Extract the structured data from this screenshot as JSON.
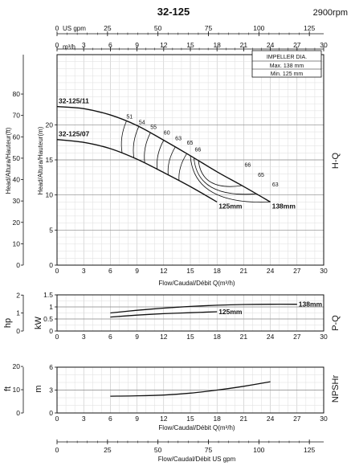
{
  "header": {
    "model": "32-125",
    "speed": "2900rpm"
  },
  "axes": {
    "usgpm_label": "US gpm",
    "q_label": "m³/h",
    "flow_label": "Flow/Caudal/Débit Q(m³/h)",
    "flow_label_gpm": "Flow/Caudal/Débit  US gpm",
    "head_ft_label": "Head/Altura/Hauteur(ft)",
    "head_m_label": "Head/Altura/Hauteur(m)",
    "hp_label": "hp",
    "kw_label": "kW",
    "ft_label": "ft",
    "m_label": "m",
    "hq_label": "H-Q",
    "pq_label": "P-Q",
    "npsh_label": "NPSHr"
  },
  "legend": {
    "title": "IMPELLER DIA.",
    "max": "Max.  138 mm",
    "min": "Min.   125 mm"
  },
  "chart_data": [
    {
      "type": "line",
      "title": "H-Q",
      "xlabel": "Flow/Caudal/Débit Q(m³/h)",
      "ylabel": "Head/Altura/Hauteur(m)",
      "xlim": [
        0,
        30
      ],
      "ylim": [
        0,
        30
      ],
      "x_ticks": [
        0,
        3,
        6,
        9,
        12,
        15,
        18,
        21,
        24,
        27,
        30
      ],
      "y_ticks": [
        0,
        5,
        10,
        15,
        20
      ],
      "ft_ticks": [
        0,
        10,
        20,
        30,
        40,
        50,
        60,
        70,
        80
      ],
      "gpm_ticks": [
        0,
        25,
        50,
        75,
        100,
        125
      ],
      "series": [
        {
          "name": "32-125/11",
          "end_label": "138mm",
          "x": [
            0,
            3,
            6,
            9,
            12,
            15,
            18,
            21,
            24
          ],
          "y": [
            22.6,
            22.3,
            21.4,
            19.9,
            17.8,
            15.6,
            13.3,
            11.2,
            9.0
          ]
        },
        {
          "name": "32-125/07",
          "end_label": "125mm",
          "x": [
            0,
            3,
            6,
            9,
            12,
            15,
            18
          ],
          "y": [
            17.9,
            17.5,
            16.6,
            15.1,
            13.2,
            11.2,
            9.0
          ]
        }
      ],
      "efficiency_labels": [
        {
          "text": "51",
          "x": 7.8,
          "y": 20.9
        },
        {
          "text": "54",
          "x": 9.2,
          "y": 20.1
        },
        {
          "text": "55",
          "x": 10.5,
          "y": 19.4
        },
        {
          "text": "60",
          "x": 12.0,
          "y": 18.6
        },
        {
          "text": "63",
          "x": 13.3,
          "y": 17.8
        },
        {
          "text": "65",
          "x": 14.6,
          "y": 17.2
        },
        {
          "text": "66",
          "x": 15.5,
          "y": 16.2
        },
        {
          "text": "66",
          "x": 21.1,
          "y": 14.0
        },
        {
          "text": "65",
          "x": 22.6,
          "y": 12.6
        },
        {
          "text": "63",
          "x": 24.2,
          "y": 11.2
        }
      ]
    },
    {
      "type": "line",
      "title": "P-Q",
      "xlim": [
        0,
        30
      ],
      "ylim": [
        0,
        1.5
      ],
      "y_ticks": [
        0,
        0.5,
        1,
        1.5
      ],
      "hp_ticks": [
        0,
        1,
        2
      ],
      "series": [
        {
          "name": "138mm",
          "x": [
            6,
            9,
            12,
            15,
            18,
            21,
            24,
            27
          ],
          "y": [
            0.75,
            0.86,
            0.95,
            1.02,
            1.07,
            1.1,
            1.11,
            1.11
          ]
        },
        {
          "name": "125mm",
          "x": [
            6,
            9,
            12,
            15,
            18
          ],
          "y": [
            0.58,
            0.66,
            0.72,
            0.76,
            0.8
          ]
        }
      ]
    },
    {
      "type": "line",
      "title": "NPSHr",
      "xlim": [
        0,
        30
      ],
      "ylim": [
        0,
        6
      ],
      "y_ticks": [
        0,
        3,
        6
      ],
      "ft_ticks": [
        0,
        10,
        20
      ],
      "series": [
        {
          "name": "NPSHr",
          "x": [
            6,
            9,
            12,
            15,
            18,
            21,
            24
          ],
          "y": [
            2.2,
            2.25,
            2.35,
            2.6,
            3.0,
            3.5,
            4.1
          ]
        }
      ]
    }
  ]
}
